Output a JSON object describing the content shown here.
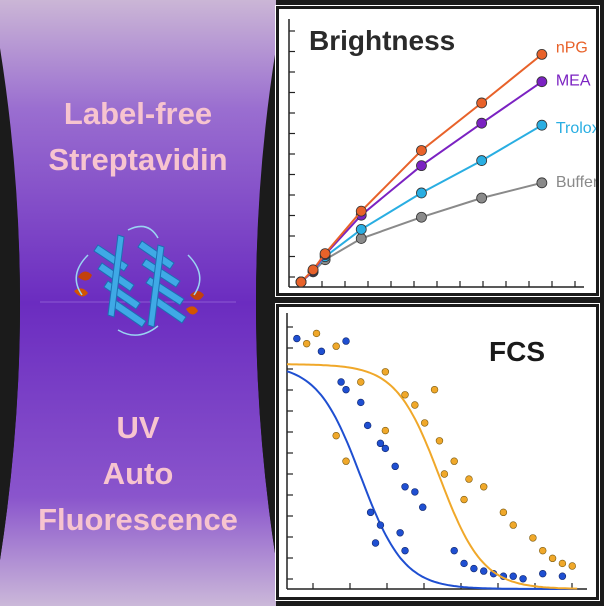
{
  "left": {
    "line1": "Label-free",
    "line2": "Streptavidin",
    "line3": "UV",
    "line4": "Auto",
    "line5": "Fluorescence"
  },
  "colors": {
    "nPG": "#e8622a",
    "MEA": "#7b22c2",
    "Trolox": "#29aee2",
    "Buffer": "#8a8a8a",
    "fcs_blue": "#1f4fd1",
    "fcs_orange": "#f0a82a",
    "background_purple": "#7a3ec4"
  },
  "chart_data": [
    {
      "type": "line",
      "title": "Brightness",
      "xlabel": "",
      "ylabel": "",
      "series": [
        {
          "name": "nPG",
          "x": [
            0,
            0.1,
            0.2,
            0.5,
            1.0,
            1.5,
            2.0
          ],
          "y": [
            0,
            0.12,
            0.28,
            0.7,
            1.3,
            1.77,
            2.25
          ]
        },
        {
          "name": "MEA",
          "x": [
            0,
            0.1,
            0.2,
            0.5,
            1.0,
            1.5,
            2.0
          ],
          "y": [
            0,
            0.11,
            0.27,
            0.66,
            1.15,
            1.57,
            1.98
          ]
        },
        {
          "name": "Trolox",
          "x": [
            0,
            0.1,
            0.2,
            0.5,
            1.0,
            1.5,
            2.0
          ],
          "y": [
            0,
            0.11,
            0.25,
            0.52,
            0.88,
            1.2,
            1.55
          ]
        },
        {
          "name": "Buffer",
          "x": [
            0,
            0.1,
            0.2,
            0.5,
            1.0,
            1.5,
            2.0
          ],
          "y": [
            0,
            0.1,
            0.22,
            0.43,
            0.64,
            0.83,
            0.98
          ]
        }
      ]
    },
    {
      "type": "scatter",
      "title": "FCS",
      "xlabel": "",
      "ylabel": "",
      "series": [
        {
          "color": "blue",
          "points": [
            [
              0.1,
              0.98
            ],
            [
              0.6,
              0.97
            ],
            [
              0.35,
              0.93
            ],
            [
              0.55,
              0.81
            ],
            [
              0.6,
              0.78
            ],
            [
              0.75,
              0.73
            ],
            [
              0.82,
              0.64
            ],
            [
              0.95,
              0.57
            ],
            [
              1.0,
              0.55
            ],
            [
              1.1,
              0.48
            ],
            [
              1.2,
              0.4
            ],
            [
              1.3,
              0.38
            ],
            [
              1.38,
              0.32
            ],
            [
              0.85,
              0.3
            ],
            [
              0.95,
              0.25
            ],
            [
              1.15,
              0.22
            ],
            [
              1.2,
              0.15
            ],
            [
              0.9,
              0.18
            ],
            [
              1.7,
              0.15
            ],
            [
              1.8,
              0.1
            ],
            [
              1.9,
              0.08
            ],
            [
              2.0,
              0.07
            ],
            [
              2.1,
              0.06
            ],
            [
              2.2,
              0.05
            ],
            [
              2.3,
              0.05
            ],
            [
              2.4,
              0.04
            ],
            [
              2.6,
              0.06
            ],
            [
              2.8,
              0.05
            ]
          ],
          "fit": [
            1.05,
            0.0,
            0.75
          ]
        },
        {
          "color": "orange",
          "points": [
            [
              0.3,
              1.0
            ],
            [
              0.2,
              0.96
            ],
            [
              0.5,
              0.95
            ],
            [
              1.0,
              0.85
            ],
            [
              0.75,
              0.81
            ],
            [
              1.5,
              0.78
            ],
            [
              1.2,
              0.76
            ],
            [
              1.3,
              0.72
            ],
            [
              1.4,
              0.65
            ],
            [
              1.0,
              0.62
            ],
            [
              0.5,
              0.6
            ],
            [
              1.55,
              0.58
            ],
            [
              1.7,
              0.5
            ],
            [
              0.6,
              0.5
            ],
            [
              1.6,
              0.45
            ],
            [
              1.85,
              0.43
            ],
            [
              2.0,
              0.4
            ],
            [
              1.8,
              0.35
            ],
            [
              2.2,
              0.3
            ],
            [
              2.3,
              0.25
            ],
            [
              2.5,
              0.2
            ],
            [
              2.6,
              0.15
            ],
            [
              2.7,
              0.12
            ],
            [
              2.8,
              0.1
            ],
            [
              2.9,
              0.09
            ]
          ],
          "fit": [
            1.05,
            0.0,
            1.55
          ]
        }
      ]
    }
  ]
}
